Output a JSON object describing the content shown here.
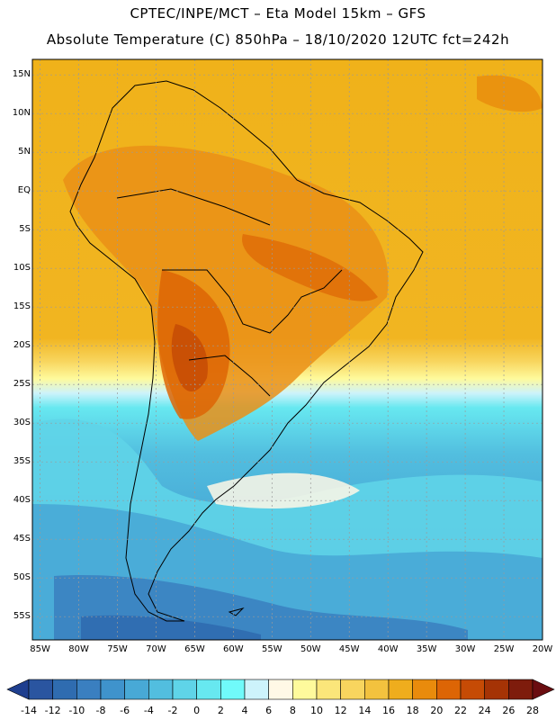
{
  "title": {
    "line1": "CPTEC/INPE/MCT –  Eta Model 15km – GFS",
    "line2": "Absolute Temperature (C) 850hPa – 18/10/2020 12UTC fct=242h"
  },
  "map": {
    "lon_range": [
      -86,
      -20
    ],
    "lat_range": [
      -58,
      17
    ],
    "lat_labels": [
      "15N",
      "10N",
      "5N",
      "EQ",
      "5S",
      "10S",
      "15S",
      "20S",
      "25S",
      "30S",
      "35S",
      "40S",
      "45S",
      "50S",
      "55S"
    ],
    "lon_labels": [
      "85W",
      "80W",
      "75W",
      "70W",
      "65W",
      "60W",
      "55W",
      "50W",
      "45W",
      "40W",
      "35W",
      "30W",
      "25W",
      "20W"
    ],
    "grid": "dotted"
  },
  "colorbar": {
    "tick_labels": [
      "-14",
      "-12",
      "-10",
      "-8",
      "-6",
      "-4",
      "-2",
      "0",
      "2",
      "4",
      "6",
      "8",
      "10",
      "12",
      "14",
      "16",
      "18",
      "20",
      "22",
      "24",
      "26",
      "28"
    ],
    "colors": [
      "#1f3f8f",
      "#2a55a0",
      "#2f6cb0",
      "#3a7fc0",
      "#3f93cc",
      "#48a9d6",
      "#52bedf",
      "#5fd4e8",
      "#67e8f0",
      "#70fafa",
      "#cdf3fb",
      "#fff8e6",
      "#fefa9c",
      "#fbe67a",
      "#f8d55e",
      "#f3c23e",
      "#efad1d",
      "#e98b0c",
      "#dd6505",
      "#c64b05",
      "#a53305",
      "#7e1c0c",
      "#6a0d10"
    ]
  },
  "colors": {
    "border": "#000000",
    "grid": "#9a9a9a"
  }
}
